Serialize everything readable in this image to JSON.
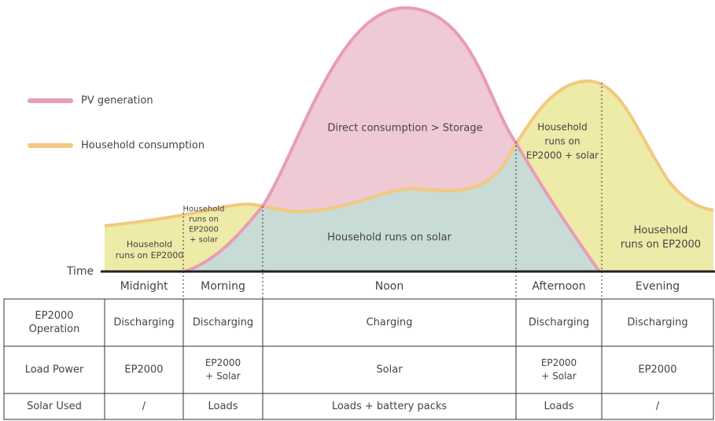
{
  "legend": [
    {
      "label": "PV generation"
    },
    {
      "label": "Household consumption"
    }
  ],
  "area_labels": [
    [
      "Household",
      "runs on EP2000"
    ],
    [
      "Household",
      "runs on",
      "EP2000",
      "+ solar"
    ],
    [
      "Household runs on solar"
    ],
    [
      "Direct consumption > Storage"
    ],
    [
      "Household",
      "runs on",
      "EP2000 + solar"
    ],
    [
      "Household",
      "runs on EP2000"
    ]
  ],
  "axis_label": "Time",
  "periods": [
    "Midnight",
    "Morning",
    "Noon",
    "Afternoon",
    "Evening"
  ],
  "table": {
    "rows": [
      [
        [
          "EP2000",
          "Operation"
        ],
        [
          "Discharging"
        ],
        [
          "Discharging"
        ],
        [
          "Charging"
        ],
        [
          "Discharging"
        ],
        [
          "Discharging"
        ]
      ],
      [
        [
          "Load Power"
        ],
        [
          "EP2000"
        ],
        [
          "EP2000",
          "+ Solar"
        ],
        [
          "Solar"
        ],
        [
          "EP2000",
          "+ Solar"
        ],
        [
          "EP2000"
        ]
      ],
      [
        [
          "Solar Used"
        ],
        [
          "/"
        ],
        [
          "Loads"
        ],
        [
          "Loads + battery packs"
        ],
        [
          "Loads"
        ],
        [
          "/"
        ]
      ]
    ]
  }
}
